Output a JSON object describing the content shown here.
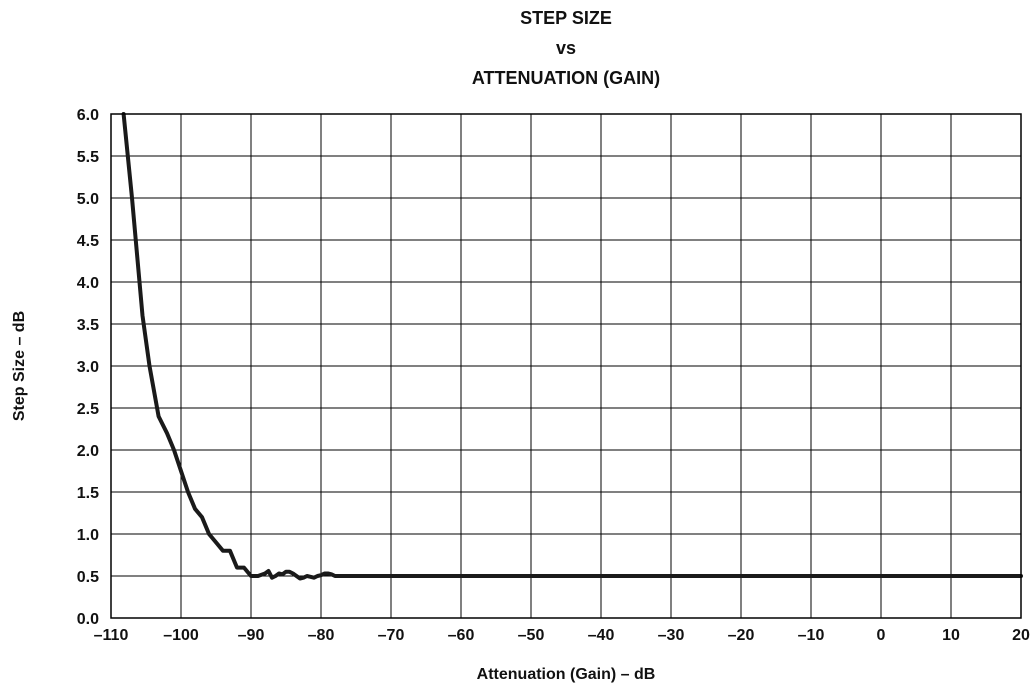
{
  "chart_data": {
    "type": "line",
    "title_lines": [
      "STEP SIZE",
      "vs",
      "ATTENUATION (GAIN)"
    ],
    "xlabel": "Attenuation (Gain) – dB",
    "ylabel": "Step Size – dB",
    "xlim": [
      -110,
      20
    ],
    "ylim": [
      0,
      6
    ],
    "xticks": [
      -110,
      -100,
      -90,
      -80,
      -70,
      -60,
      -50,
      -40,
      -30,
      -20,
      -10,
      0,
      10,
      20
    ],
    "xtick_labels": [
      "–110",
      "–100",
      "–90",
      "–80",
      "–70",
      "–60",
      "–50",
      "–40",
      "–30",
      "–20",
      "–10",
      "0",
      "10",
      "20"
    ],
    "yticks": [
      0,
      0.5,
      1,
      1.5,
      2,
      2.5,
      3,
      3.5,
      4,
      4.5,
      5,
      5.5,
      6
    ],
    "ytick_labels": [
      "0.0",
      "0.5",
      "1.0",
      "1.5",
      "2.0",
      "2.5",
      "3.0",
      "3.5",
      "4.0",
      "4.5",
      "5.0",
      "5.5",
      "6.0"
    ],
    "grid": true,
    "series": [
      {
        "color": "#1a1a1a",
        "x": [
          -108.2,
          -107.0,
          -105.5,
          -104.5,
          -103.2,
          -102.0,
          -101.0,
          -100.0,
          -99.0,
          -98.0,
          -97.0,
          -96.0,
          -95.0,
          -94.0,
          -93.0,
          -92.0,
          -91.0,
          -90.0,
          -89.0,
          -88.0,
          -87.5,
          -87.0,
          -86.5,
          -86.0,
          -85.5,
          -85.0,
          -84.5,
          -84.0,
          -83.5,
          -83.0,
          -82.5,
          -82.0,
          -81.5,
          -81.0,
          -80.5,
          -80.0,
          -79.5,
          -79.0,
          -78.5,
          -78.0,
          -77.5,
          -77.0,
          -60,
          -40,
          -20,
          0,
          20
        ],
        "y": [
          6.0,
          5.0,
          3.6,
          3.0,
          2.4,
          2.2,
          2.0,
          1.75,
          1.5,
          1.3,
          1.2,
          1.0,
          0.9,
          0.8,
          0.8,
          0.6,
          0.6,
          0.5,
          0.5,
          0.53,
          0.56,
          0.48,
          0.5,
          0.53,
          0.52,
          0.55,
          0.55,
          0.53,
          0.5,
          0.47,
          0.48,
          0.5,
          0.49,
          0.48,
          0.5,
          0.51,
          0.53,
          0.53,
          0.52,
          0.5,
          0.5,
          0.5,
          0.5,
          0.5,
          0.5,
          0.5,
          0.5
        ]
      }
    ]
  }
}
